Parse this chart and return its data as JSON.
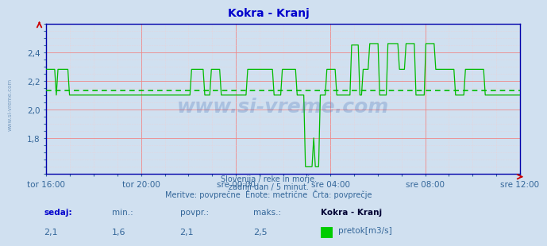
{
  "title": "Kokra - Kranj",
  "title_color": "#0000cc",
  "bg_color": "#d0e0f0",
  "plot_bg_color": "#d0e0f0",
  "line_color": "#00bb00",
  "avg_line_color": "#00bb00",
  "avg_line_style": "dotted",
  "avg_value": 2.13,
  "axis_color": "#0000aa",
  "grid_major_color": "#ee8888",
  "grid_minor_color": "#f5cccc",
  "tick_label_color": "#336699",
  "ylim": [
    1.55,
    2.6
  ],
  "yticks": [
    1.8,
    2.0,
    2.2,
    2.4
  ],
  "xlabels": [
    "tor 16:00",
    "tor 20:00",
    "sre 00:00",
    "sre 04:00",
    "sre 08:00",
    "sre 12:00"
  ],
  "subtitle1": "Slovenija / reke in morje.",
  "subtitle2": "zadnji dan / 5 minut.",
  "subtitle3": "Meritve: povprečne  Enote: metrične  Črta: povprečje",
  "footer_label1": "sedaj:",
  "footer_label2": "min.:",
  "footer_label3": "povpr.:",
  "footer_label4": "maks.:",
  "footer_val1": "2,1",
  "footer_val2": "1,6",
  "footer_val3": "2,1",
  "footer_val4": "2,5",
  "footer_series": "Kokra - Kranj",
  "footer_legend": "pretok[m3/s]",
  "watermark": "www.si-vreme.com",
  "watermark_color": "#2255aa",
  "side_text": "www.si-vreme.com",
  "num_points": 288
}
